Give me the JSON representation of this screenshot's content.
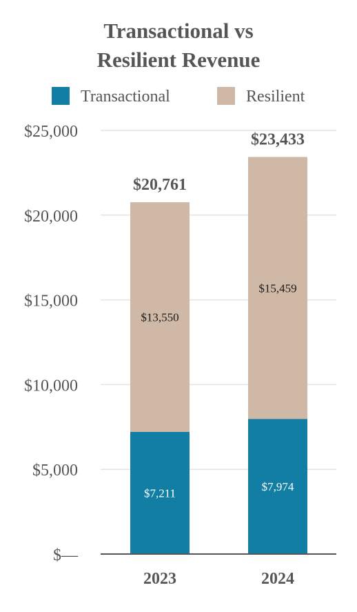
{
  "chart_data": {
    "type": "bar",
    "stacked": true,
    "title": "Transactional vs Resilient Revenue",
    "title_lines": [
      "Transactional vs",
      "Resilient Revenue"
    ],
    "categories": [
      "2023",
      "2024"
    ],
    "series": [
      {
        "name": "Transactional",
        "values": [
          7211,
          7974
        ],
        "color": "#127ea3",
        "labels": [
          "$7,211",
          "$7,974"
        ]
      },
      {
        "name": "Resilient",
        "values": [
          13550,
          15459
        ],
        "color": "#cfb8a5",
        "labels": [
          "$13,550",
          "$15,459"
        ]
      }
    ],
    "totals": [
      20761,
      23433
    ],
    "total_labels": [
      "$20,761",
      "$23,433"
    ],
    "ylim": [
      0,
      25000
    ],
    "yticks": [
      0,
      5000,
      10000,
      15000,
      20000,
      25000
    ],
    "ytick_labels": [
      "$—",
      "$5,000",
      "$10,000",
      "$15,000",
      "$20,000",
      "$25,000"
    ],
    "grid": true,
    "legend_position": "top",
    "xlabel": "",
    "ylabel": ""
  },
  "colors": {
    "title": "#555555",
    "axis_text": "#555555",
    "gridline": "#e4e4e4",
    "baseline": "#555555",
    "total_label": "#555555",
    "segment_label_on_resilient": "#1a1a1a",
    "segment_label_on_transactional": "#ffffff"
  }
}
